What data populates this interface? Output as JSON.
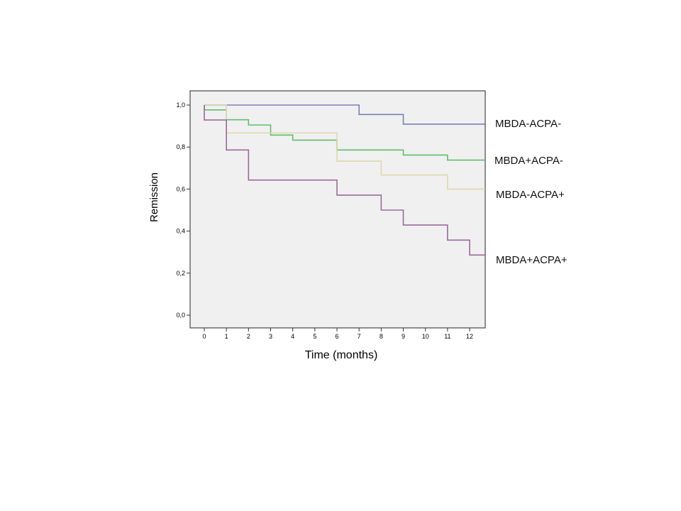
{
  "chart_data": {
    "type": "line",
    "subtype": "kaplan-meier-step",
    "title": "",
    "xlabel": "Time (months)",
    "ylabel": "Remission",
    "xlim": [
      0,
      12.7
    ],
    "ylim": [
      0,
      1.0
    ],
    "x_ticks": [
      "0",
      "1",
      "2",
      "3",
      "4",
      "5",
      "6",
      "7",
      "8",
      "9",
      "10",
      "11",
      "12"
    ],
    "y_ticks": [
      "0,0",
      "0,2",
      "0,4",
      "0,6",
      "0,8",
      "1,0"
    ],
    "grid": false,
    "legend": "right, labels at curve ends",
    "series": [
      {
        "name": "MBDA-ACPA-",
        "color": "#7a7fb8",
        "steps": [
          [
            0,
            1.0
          ],
          [
            7,
            0.955
          ],
          [
            9,
            0.909
          ]
        ],
        "end": 12.7
      },
      {
        "name": "MBDA+ACPA-",
        "color": "#62bd6a",
        "steps": [
          [
            0,
            0.977
          ],
          [
            1,
            0.93
          ],
          [
            2,
            0.905
          ],
          [
            3,
            0.857
          ],
          [
            4,
            0.833
          ],
          [
            6,
            0.786
          ],
          [
            9,
            0.762
          ],
          [
            11,
            0.738
          ]
        ],
        "end": 12.7
      },
      {
        "name": "MBDA-ACPA+",
        "color": "#dcd9ad",
        "steps": [
          [
            0,
            1.0
          ],
          [
            1,
            0.867
          ],
          [
            6,
            0.733
          ],
          [
            8,
            0.667
          ],
          [
            11,
            0.6
          ]
        ],
        "end": 12.7
      },
      {
        "name": "MBDA+ACPA+",
        "color": "#9a6a9c",
        "steps": [
          [
            0,
            0.929
          ],
          [
            1,
            0.786
          ],
          [
            2,
            0.643
          ],
          [
            6,
            0.571
          ],
          [
            8,
            0.5
          ],
          [
            9,
            0.429
          ],
          [
            11,
            0.357
          ],
          [
            12,
            0.286
          ]
        ],
        "end": 12.7
      }
    ]
  }
}
